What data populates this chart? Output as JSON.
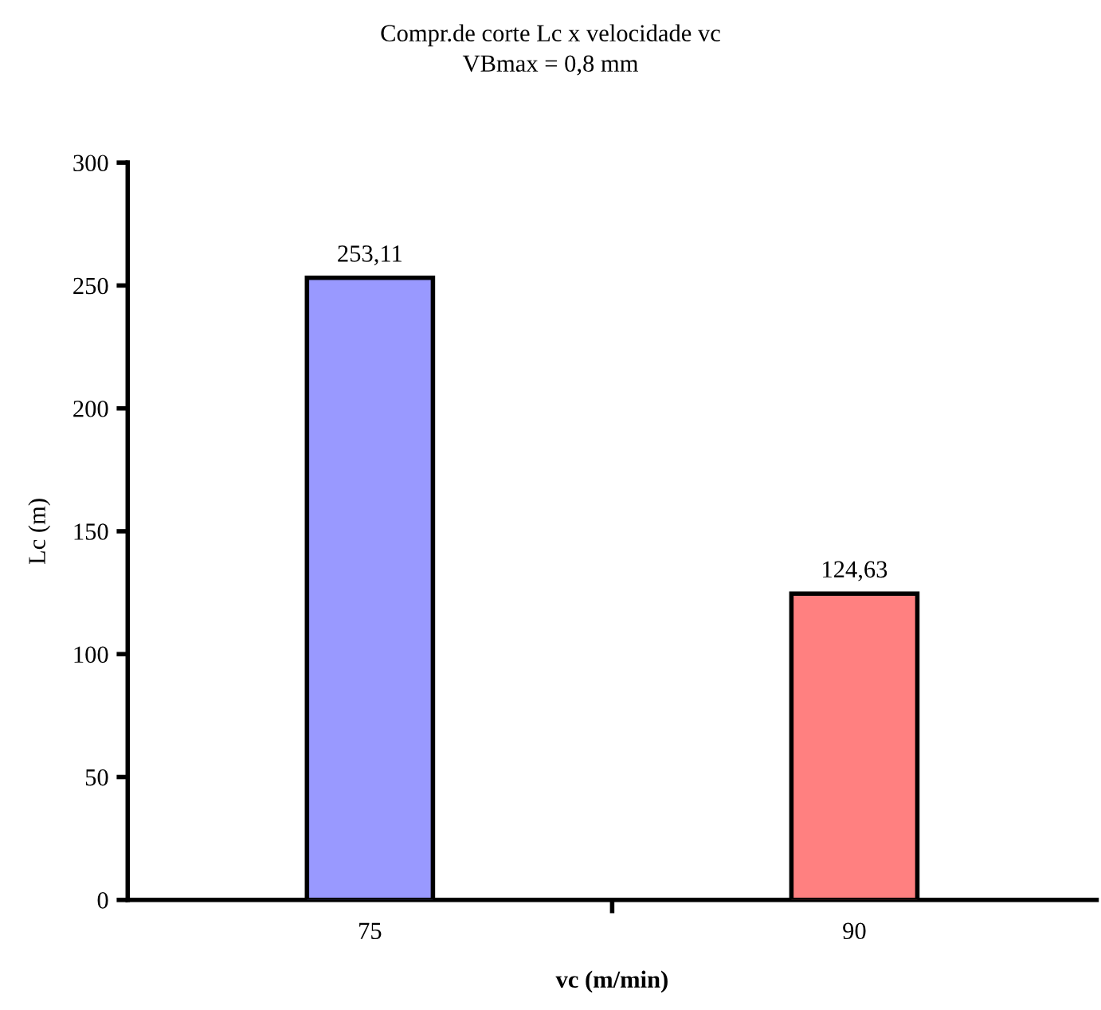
{
  "chart_data": {
    "type": "bar",
    "title": "Compr.de corte Lc x velocidade vc",
    "subtitle": "VBmax = 0,8 mm",
    "xlabel": "vc (m/min)",
    "ylabel": "Lc (m)",
    "categories": [
      "75",
      "90"
    ],
    "values": [
      253.11,
      124.63
    ],
    "colors": [
      "#9999ff",
      "#ff8080"
    ],
    "value_labels": [
      "253,11",
      "124,63"
    ],
    "ylim": [
      0,
      300
    ],
    "yticks": [
      0,
      50,
      100,
      150,
      200,
      250,
      300
    ],
    "grid": false,
    "legend": false
  }
}
